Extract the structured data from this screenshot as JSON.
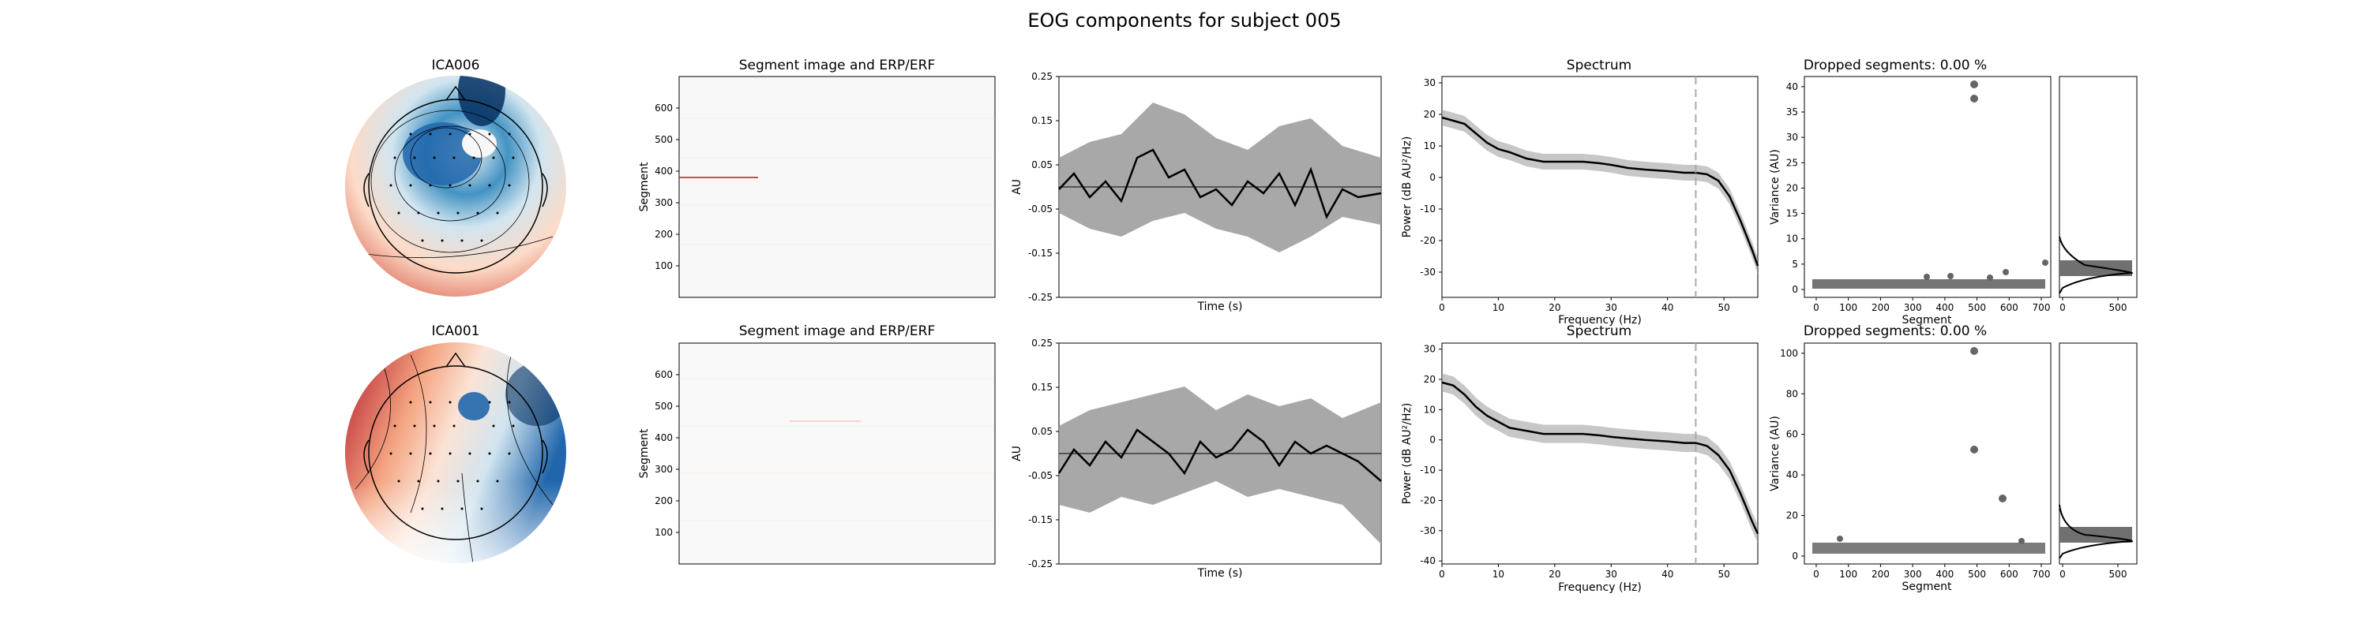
{
  "figure": {
    "title": "EOG components for subject 005"
  },
  "colors": {
    "line": "#000000",
    "band": "#999999",
    "scatter": "#555555",
    "vline": "#aaaaaa",
    "red": "#b2182b",
    "blue": "#2166ac"
  },
  "rows": [
    {
      "component": "ICA006",
      "image_title": "Segment image and ERP/ERF",
      "image_ylabel": "Segment",
      "image_yticks": [
        "100",
        "200",
        "300",
        "400",
        "500",
        "600"
      ],
      "erp_ylabel": "AU",
      "erp_xlabel": "Time (s)",
      "erp_yticks": [
        "0.25",
        "0.15",
        "0.05",
        "-0.05",
        "-0.15",
        "-0.25"
      ],
      "spectrum_title": "Spectrum",
      "spectrum_ylabel": "Power (dB AU²/Hz)",
      "spectrum_xlabel": "Frequency (Hz)",
      "spectrum_yticks": [
        "30",
        "20",
        "10",
        "0",
        "-10",
        "-20",
        "-30"
      ],
      "spectrum_xticks": [
        "0",
        "10",
        "20",
        "30",
        "40",
        "50"
      ],
      "dropped_title": "Dropped segments: 0.00 %",
      "variance_ylabel": "Variance (AU)",
      "variance_xlabel": "Segment",
      "variance_yticks": [
        "0",
        "5",
        "10",
        "15",
        "20",
        "25",
        "30",
        "35",
        "40"
      ],
      "variance_xticks": [
        "0",
        "100",
        "200",
        "300",
        "400",
        "500",
        "600",
        "700"
      ],
      "hist_xticks": [
        "0",
        "500"
      ]
    },
    {
      "component": "ICA001",
      "image_title": "Segment image and ERP/ERF",
      "image_ylabel": "Segment",
      "image_yticks": [
        "100",
        "200",
        "300",
        "400",
        "500",
        "600"
      ],
      "erp_ylabel": "AU",
      "erp_xlabel": "Time (s)",
      "erp_yticks": [
        "0.25",
        "0.15",
        "0.05",
        "-0.05",
        "-0.15",
        "-0.25"
      ],
      "spectrum_title": "Spectrum",
      "spectrum_ylabel": "Power (dB AU²/Hz)",
      "spectrum_xlabel": "Frequency (Hz)",
      "spectrum_yticks": [
        "30",
        "20",
        "10",
        "0",
        "-10",
        "-20",
        "-30",
        "-40"
      ],
      "spectrum_xticks": [
        "0",
        "10",
        "20",
        "30",
        "40",
        "50"
      ],
      "dropped_title": "Dropped segments: 0.00 %",
      "variance_ylabel": "Variance (AU)",
      "variance_xlabel": "Segment",
      "variance_yticks": [
        "0",
        "20",
        "40",
        "60",
        "80",
        "100"
      ],
      "variance_xticks": [
        "0",
        "100",
        "200",
        "300",
        "400",
        "500",
        "600",
        "700"
      ],
      "hist_xticks": [
        "0",
        "500"
      ]
    }
  ],
  "chart_data": [
    {
      "type": "line",
      "title": "Spectrum",
      "subject_component": "ICA006",
      "xlabel": "Frequency (Hz)",
      "ylabel": "Power (dB AU²/Hz)",
      "xlim": [
        0,
        56
      ],
      "ylim": [
        -38,
        32
      ],
      "vline_x": 45,
      "x": [
        0,
        2,
        4,
        6,
        8,
        10,
        12,
        15,
        18,
        20,
        22,
        25,
        28,
        30,
        33,
        36,
        40,
        43,
        45,
        47,
        49,
        51,
        53,
        55,
        56
      ],
      "values": [
        19,
        18,
        17,
        14,
        11,
        9,
        8,
        6,
        5,
        5,
        5,
        5,
        4.5,
        4,
        3,
        2.5,
        2,
        1.5,
        1.5,
        1,
        -1,
        -6,
        -14,
        -23,
        -28
      ],
      "band_half_width": 2.5
    },
    {
      "type": "line",
      "title": "Spectrum",
      "subject_component": "ICA001",
      "xlabel": "Frequency (Hz)",
      "ylabel": "Power (dB AU²/Hz)",
      "xlim": [
        0,
        56
      ],
      "ylim": [
        -41,
        32
      ],
      "vline_x": 45,
      "x": [
        0,
        2,
        4,
        6,
        8,
        10,
        12,
        15,
        18,
        20,
        22,
        25,
        28,
        30,
        33,
        36,
        40,
        43,
        45,
        47,
        49,
        51,
        53,
        55,
        56
      ],
      "values": [
        19,
        18,
        15,
        11,
        8,
        6,
        4,
        3,
        2,
        2,
        2,
        2,
        1.5,
        1,
        0.5,
        0,
        -0.5,
        -1,
        -1,
        -2,
        -5,
        -10,
        -18,
        -27,
        -31
      ],
      "band_half_width": 3
    }
  ]
}
